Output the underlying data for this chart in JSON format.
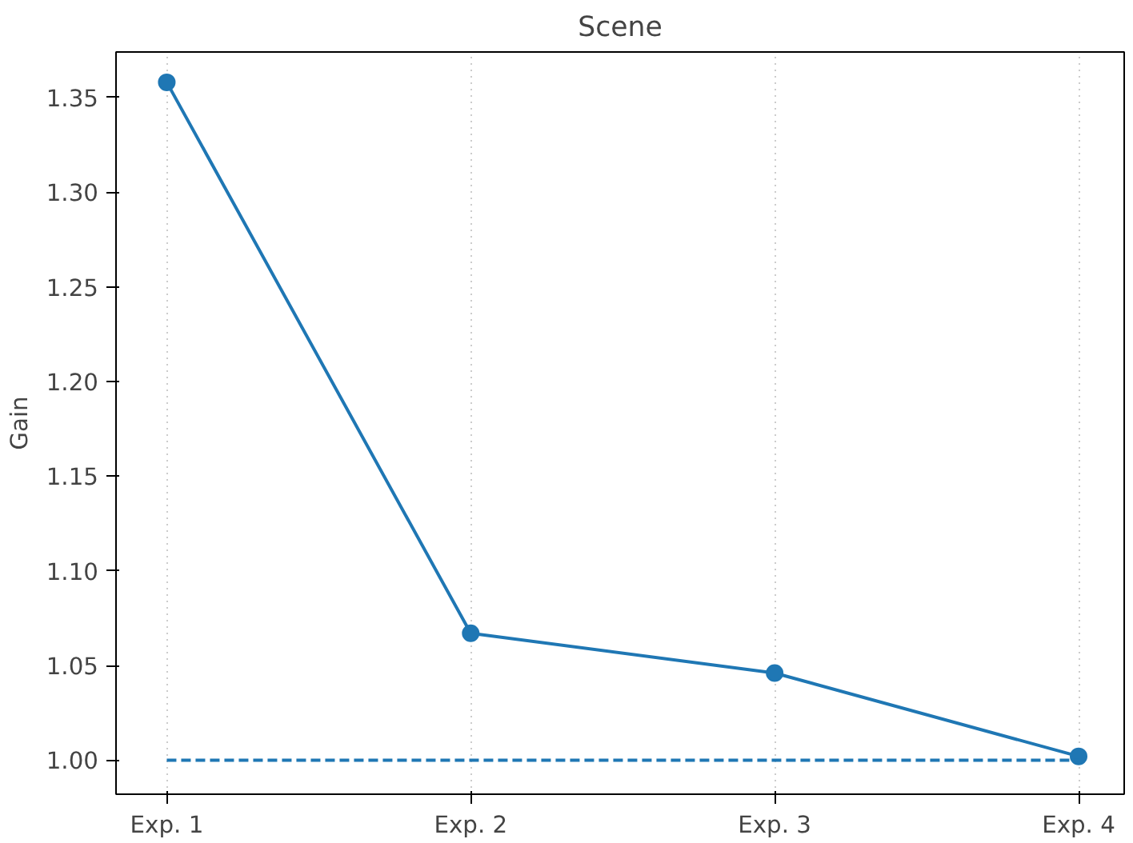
{
  "chart_data": {
    "type": "line",
    "title": "Scene",
    "ylabel": "Gain",
    "categories": [
      "Exp. 1",
      "Exp. 2",
      "Exp. 3",
      "Exp. 4"
    ],
    "series": [
      {
        "color": "#1f77b4",
        "values": [
          1.358,
          1.067,
          1.046,
          1.002
        ],
        "marker": "circle",
        "line_style": "solid"
      },
      {
        "color": "#1f77b4",
        "values": [
          1.0,
          1.0,
          1.0,
          1.0
        ],
        "marker": "none",
        "line_style": "dashed"
      }
    ],
    "ylim": [
      0.982,
      1.374
    ],
    "yticks": [
      {
        "value": 1.0,
        "label": "1.00"
      },
      {
        "value": 1.05,
        "label": "1.05"
      },
      {
        "value": 1.1,
        "label": "1.10"
      },
      {
        "value": 1.15,
        "label": "1.15"
      },
      {
        "value": 1.2,
        "label": "1.20"
      },
      {
        "value": 1.25,
        "label": "1.25"
      },
      {
        "value": 1.3,
        "label": "1.30"
      },
      {
        "value": 1.35,
        "label": "1.35"
      }
    ],
    "grid": "x"
  }
}
